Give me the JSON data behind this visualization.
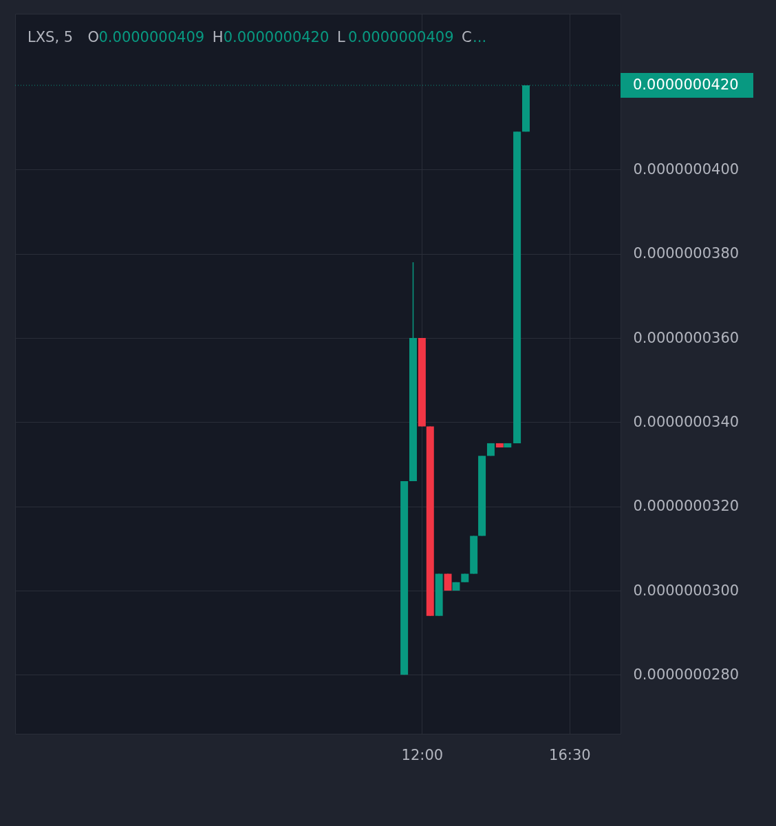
{
  "chart_data": {
    "type": "candlestick",
    "title": "LXS, 5",
    "annotations": [
      "O0.0000000409",
      "H0.0000000420",
      "L0.0000000409",
      "C..."
    ],
    "x": [
      11.46,
      11.73,
      12.0,
      12.25,
      12.52,
      12.79,
      13.04,
      13.31,
      13.58,
      13.83,
      14.1,
      14.37,
      14.61,
      14.9,
      15.17
    ],
    "ohlc": [
      [
        2.8e-08,
        3.26e-08,
        2.8e-08,
        3.26e-08
      ],
      [
        3.26e-08,
        3.78e-08,
        3.26e-08,
        3.6e-08
      ],
      [
        3.6e-08,
        3.6e-08,
        3.39e-08,
        3.39e-08
      ],
      [
        3.39e-08,
        3.39e-08,
        2.94e-08,
        2.94e-08
      ],
      [
        2.94e-08,
        3.04e-08,
        2.94e-08,
        3.04e-08
      ],
      [
        3.04e-08,
        3.04e-08,
        3e-08,
        3e-08
      ],
      [
        3e-08,
        3.02e-08,
        3e-08,
        3.02e-08
      ],
      [
        3.02e-08,
        3.04e-08,
        3.02e-08,
        3.04e-08
      ],
      [
        3.04e-08,
        3.13e-08,
        3.04e-08,
        3.13e-08
      ],
      [
        3.13e-08,
        3.32e-08,
        3.13e-08,
        3.32e-08
      ],
      [
        3.32e-08,
        3.35e-08,
        3.32e-08,
        3.35e-08
      ],
      [
        3.35e-08,
        3.35e-08,
        3.34e-08,
        3.34e-08
      ],
      [
        3.34e-08,
        3.35e-08,
        3.34e-08,
        3.35e-08
      ],
      [
        3.35e-08,
        4.09e-08,
        3.35e-08,
        4.09e-08
      ],
      [
        4.09e-08,
        4.2e-08,
        4.09e-08,
        4.2e-08
      ]
    ],
    "colors": [
      "#089981",
      "#089981",
      "#f23645",
      "#f23645",
      "#089981",
      "#f23645",
      "#089981",
      "#089981",
      "#089981",
      "#089981",
      "#089981",
      "#f23645",
      "#089981",
      "#089981",
      "#089981"
    ],
    "xlim": [
      -0.3,
      17.95
    ],
    "xticks": [
      {
        "value": 12,
        "label": "12:00"
      },
      {
        "value": 16.5,
        "label": "16:30"
      }
    ],
    "ylim": [
      2.66e-08,
      4.37e-08
    ],
    "yticks": [
      {
        "value": 2.8e-08,
        "label": "0.0000000280"
      },
      {
        "value": 3e-08,
        "label": "0.0000000300"
      },
      {
        "value": 3.2e-08,
        "label": "0.0000000320"
      },
      {
        "value": 3.4e-08,
        "label": "0.0000000340"
      },
      {
        "value": 3.6e-08,
        "label": "0.0000000360"
      },
      {
        "value": 3.8e-08,
        "label": "0.0000000380"
      },
      {
        "value": 4e-08,
        "label": "0.0000000400"
      }
    ],
    "ref_lines": [
      {
        "axis": "y",
        "value": 4.2e-08,
        "label": "0.0000000420",
        "color": "#089981",
        "line_style": "dotted"
      }
    ],
    "grid": true
  }
}
